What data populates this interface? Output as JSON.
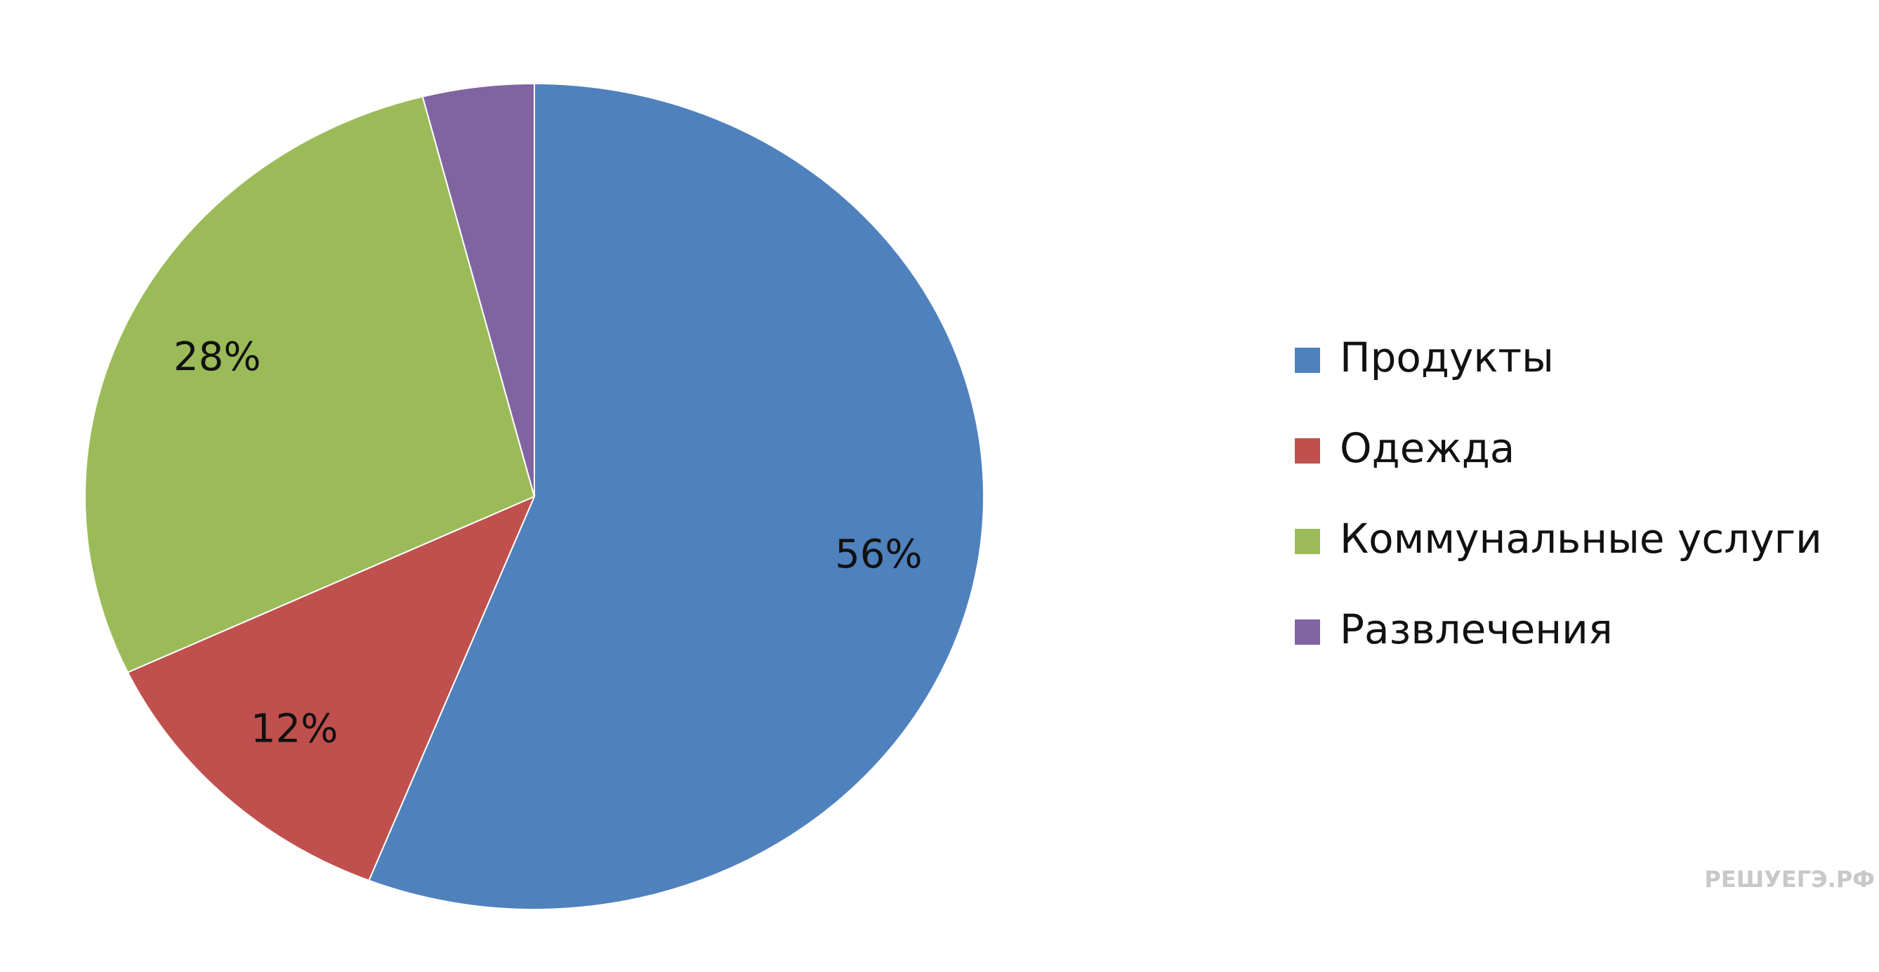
{
  "chart_data": {
    "type": "pie",
    "categories": [
      "Продукты",
      "Одежда",
      "Коммунальные услуги",
      "Развлечения"
    ],
    "values": [
      56,
      12,
      28,
      4
    ],
    "value_labels": [
      "56%",
      "12%",
      "28%",
      null
    ],
    "colors": [
      "#4f81bd",
      "#c0504d",
      "#9bbb59",
      "#8064a2"
    ],
    "legend": "right",
    "watermark": "РЕШУЕГЭ.РФ"
  }
}
